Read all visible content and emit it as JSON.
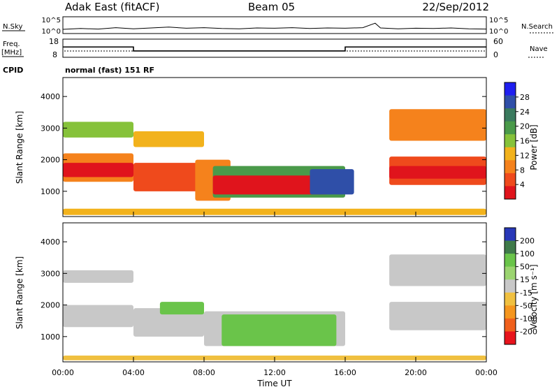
{
  "header": {
    "station": "Adak East (fitACF)",
    "beam": "Beam 05",
    "date": "22/Sep/2012"
  },
  "colors": {
    "power_scale": [
      "#1f1ff0",
      "#2f4fa8",
      "#3a7a5e",
      "#4a9a4a",
      "#86c23a",
      "#f2b21c",
      "#f5821c",
      "#ef4a1c",
      "#e0141c"
    ],
    "velocity_scale": [
      "#2838b8",
      "#3f7a4a",
      "#6ac44a",
      "#9bd470",
      "#c8c8c8",
      "#f0c040",
      "#f5961e",
      "#f0601c",
      "#e8141c"
    ]
  },
  "chart_data": [
    {
      "type": "line",
      "panel": "nsky-nsearch",
      "left_label": "N.Sky",
      "right_label": "N.Search",
      "left_ticks": [
        "10^5",
        "10^0"
      ],
      "right_ticks": [
        "10^5",
        "10^0"
      ],
      "x": [
        0,
        1,
        2,
        3,
        4,
        5,
        6,
        7,
        8,
        9,
        10,
        11,
        12,
        13,
        14,
        15,
        16,
        17,
        17.7,
        18,
        19,
        20,
        21,
        22,
        23,
        24
      ],
      "series": [
        {
          "y": [
            1.0,
            1.3,
            1.1,
            1.6,
            1.2,
            1.5,
            1.8,
            1.4,
            1.6,
            1.3,
            1.2,
            1.5,
            1.4,
            1.6,
            1.3,
            1.5,
            1.4,
            1.6,
            3.2,
            1.5,
            1.2,
            1.4,
            1.3,
            1.5,
            1.2,
            1.1
          ]
        }
      ]
    },
    {
      "type": "line",
      "panel": "freq-nave",
      "left_label": "Freq.",
      "left_unit": "[MHz]",
      "right_label": "Nave",
      "left_ticks": [
        18,
        8
      ],
      "right_ticks": [
        60,
        0
      ],
      "x": [
        0,
        4,
        4,
        16,
        16,
        24
      ],
      "series": [
        {
          "y": [
            13.8,
            13.8,
            11.2,
            11.2,
            13.8,
            13.8
          ]
        }
      ]
    },
    {
      "type": "heatmap",
      "panel": "power",
      "cpid_label": "CPID",
      "cpid_text": "normal (fast) 151 RF",
      "ylabel": "Slant Range [km]",
      "xlabel": "Time UT",
      "x_ticks": [
        "00:00",
        "04:00",
        "08:00",
        "12:00",
        "16:00",
        "20:00",
        "00:00"
      ],
      "y_ticks": [
        1000,
        2000,
        3000,
        4000
      ],
      "ylim": [
        200,
        4600
      ],
      "colorbar_label": "Power [dB]",
      "colorbar_ticks": [
        4,
        8,
        12,
        16,
        20,
        24,
        28
      ]
    },
    {
      "type": "heatmap",
      "panel": "velocity",
      "ylabel": "Slant Range [km]",
      "xlabel": "Time UT",
      "x_ticks": [
        "00:00",
        "04:00",
        "08:00",
        "12:00",
        "16:00",
        "20:00",
        "00:00"
      ],
      "y_ticks": [
        1000,
        2000,
        3000,
        4000
      ],
      "ylim": [
        200,
        4600
      ],
      "colorbar_label": "Velocity [m s⁻¹]",
      "colorbar_ticks": [
        200,
        100,
        50,
        15,
        -15,
        -50,
        -100,
        -200
      ]
    }
  ]
}
